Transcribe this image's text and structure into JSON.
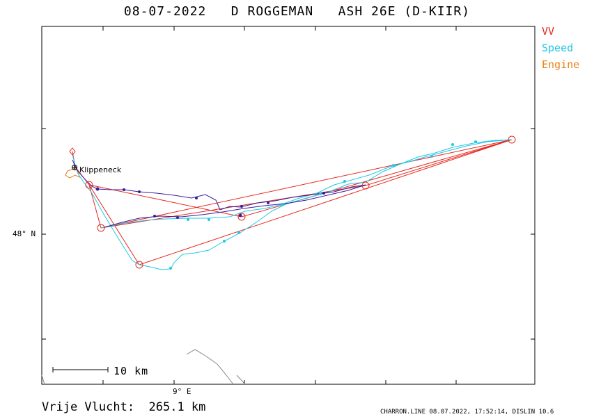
{
  "title": "08-07-2022   D ROGGEMAN   ASH 26E (D-KIIR)",
  "legend": [
    {
      "label": "VV",
      "color": "#e8281e"
    },
    {
      "label": "Speed",
      "color": "#1ec8e6"
    },
    {
      "label": "Engine",
      "color": "#e88214"
    }
  ],
  "axes": {
    "lat_label": "48° N",
    "lon_label": "9° E"
  },
  "scale_bar": {
    "label": "10 km"
  },
  "place_label": "Klippeneck",
  "distance_text": "Vrije Vlucht:  265.1 km",
  "footer": "CHARRON.LINE 08.07.2022, 17:52:14, DISLIN 10.6",
  "colors": {
    "task": "#e8281e",
    "speed": "#1ec8e6",
    "engine": "#e88214",
    "vario": "#3a1a9a",
    "coast": "#888888"
  }
}
